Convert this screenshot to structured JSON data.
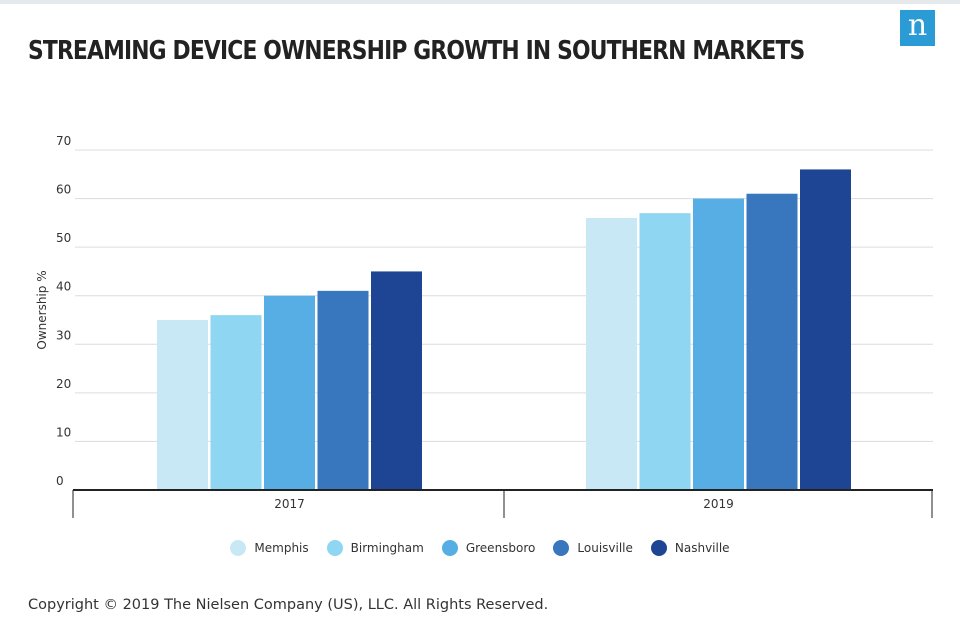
{
  "header": {
    "logo_text": "n",
    "logo_color": "#2b9bd6"
  },
  "footer": {
    "copyright": "Copyright © 2019 The Nielsen Company (US), LLC. All Rights Reserved."
  },
  "legend": [
    {
      "name": "Memphis",
      "color": "#c8e8f6"
    },
    {
      "name": "Birmingham",
      "color": "#8ed6f1"
    },
    {
      "name": "Greensboro",
      "color": "#56aee5"
    },
    {
      "name": "Louisville",
      "color": "#3876bd"
    },
    {
      "name": "Nashville",
      "color": "#1d4593"
    }
  ],
  "chart_data": {
    "type": "bar",
    "title": "STREAMING DEVICE OWNERSHIP GROWTH IN SOUTHERN MARKETS",
    "xlabel": "",
    "ylabel": "Ownership %",
    "categories": [
      "2017",
      "2019"
    ],
    "ylim": [
      0,
      70
    ],
    "yticks": [
      0,
      10,
      20,
      30,
      40,
      50,
      60,
      70
    ],
    "grid": true,
    "legend_position": "bottom",
    "series": [
      {
        "name": "Memphis",
        "values": [
          35,
          56
        ],
        "color": "#c8e8f6"
      },
      {
        "name": "Birmingham",
        "values": [
          36,
          57
        ],
        "color": "#8ed6f1"
      },
      {
        "name": "Greensboro",
        "values": [
          40,
          60
        ],
        "color": "#56aee5"
      },
      {
        "name": "Louisville",
        "values": [
          41,
          61
        ],
        "color": "#3876bd"
      },
      {
        "name": "Nashville",
        "values": [
          45,
          66
        ],
        "color": "#1d4593"
      }
    ]
  }
}
